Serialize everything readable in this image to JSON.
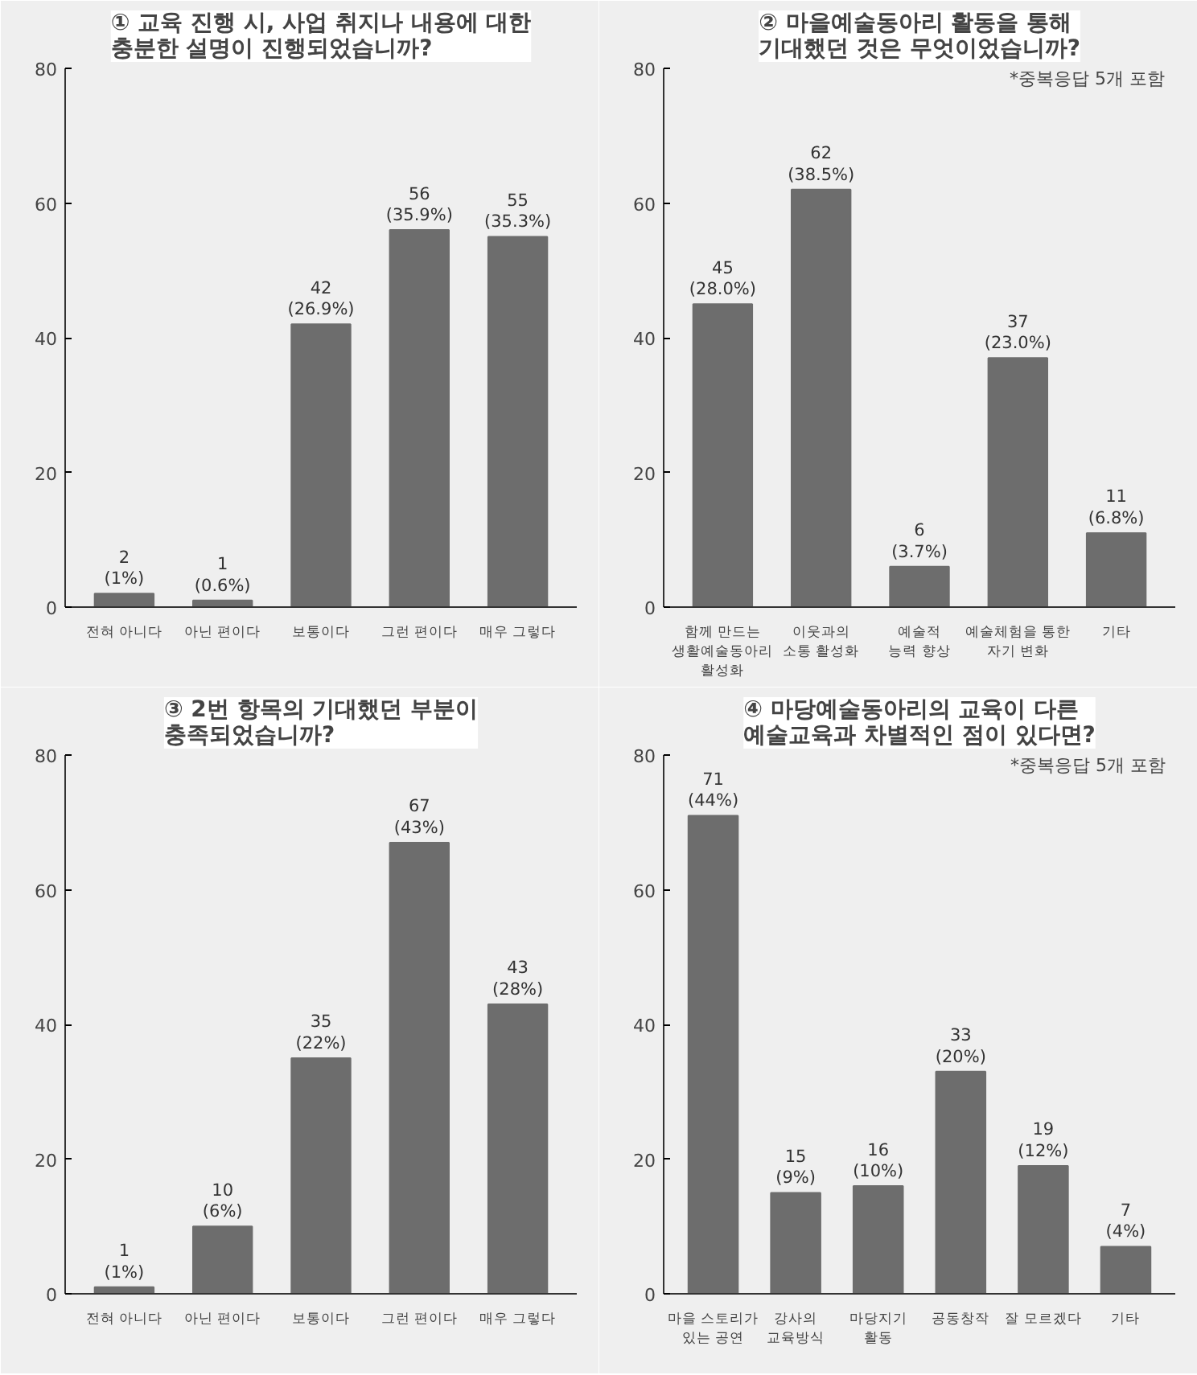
{
  "chart_data": [
    {
      "type": "bar",
      "title": "① 교육 진행 시, 사업 취지나 내용에 대한\n충분한 설명이 진행되었습니까?",
      "categories": [
        "전혀 아니다",
        "아닌 편이다",
        "보통이다",
        "그런 편이다",
        "매우 그렇다"
      ],
      "values": [
        2,
        1,
        42,
        56,
        55
      ],
      "value_labels": [
        "2\n(1%)",
        "1\n(0.6%)",
        "42\n(26.9%)",
        "56\n(35.9%)",
        "55\n(35.3%)"
      ],
      "color": "#6d6d6d",
      "ylim": [
        0,
        80
      ],
      "yticks": [
        0,
        20,
        40,
        60,
        80
      ],
      "grid": false
    },
    {
      "type": "bar",
      "title": "② 마을예술동아리 활동을 통해\n기대했던 것은 무엇이었습니까?",
      "categories": [
        "함께 만드는\n생활예술동아리 활성화",
        "이웃과의\n소통 활성화",
        "예술적\n능력 향상",
        "예술체험을 통한\n자기 변화",
        "기타"
      ],
      "values": [
        45,
        62,
        6,
        37,
        11
      ],
      "value_labels": [
        "45\n(28.0%)",
        "62\n(38.5%)",
        "6\n(3.7%)",
        "37\n(23.0%)",
        "11\n(6.8%)"
      ],
      "color": "#6d6d6d",
      "ylim": [
        0,
        80
      ],
      "yticks": [
        0,
        20,
        40,
        60,
        80
      ],
      "grid": false,
      "annotations": [
        "*중복응답  5개 포함"
      ]
    },
    {
      "type": "bar",
      "title": "③ 2번 항목의 기대했던 부분이\n충족되었습니까?",
      "categories": [
        "전혀 아니다",
        "아닌 편이다",
        "보통이다",
        "그런 편이다",
        "매우 그렇다"
      ],
      "values": [
        1,
        10,
        35,
        67,
        43
      ],
      "value_labels": [
        "1\n(1%)",
        "10\n(6%)",
        "35\n(22%)",
        "67\n(43%)",
        "43\n(28%)"
      ],
      "color": "#6d6d6d",
      "ylim": [
        0,
        80
      ],
      "yticks": [
        0,
        20,
        40,
        60,
        80
      ],
      "grid": false
    },
    {
      "type": "bar",
      "title": "④ 마당예술동아리의 교육이 다른\n예술교육과 차별적인 점이 있다면?",
      "categories": [
        "마을 스토리가\n있는 공연",
        "강사의\n교육방식",
        "마당지기\n활동",
        "공동창작",
        "잘 모르겠다",
        "기타"
      ],
      "values": [
        71,
        15,
        16,
        33,
        19,
        7
      ],
      "value_labels": [
        "71\n(44%)",
        "15\n(9%)",
        "16\n(10%)",
        "33\n(20%)",
        "19\n(12%)",
        "7\n(4%)"
      ],
      "color": "#6d6d6d",
      "ylim": [
        0,
        80
      ],
      "yticks": [
        0,
        20,
        40,
        60,
        80
      ],
      "grid": false,
      "annotations": [
        "*중복응답  5개 포함"
      ]
    }
  ]
}
